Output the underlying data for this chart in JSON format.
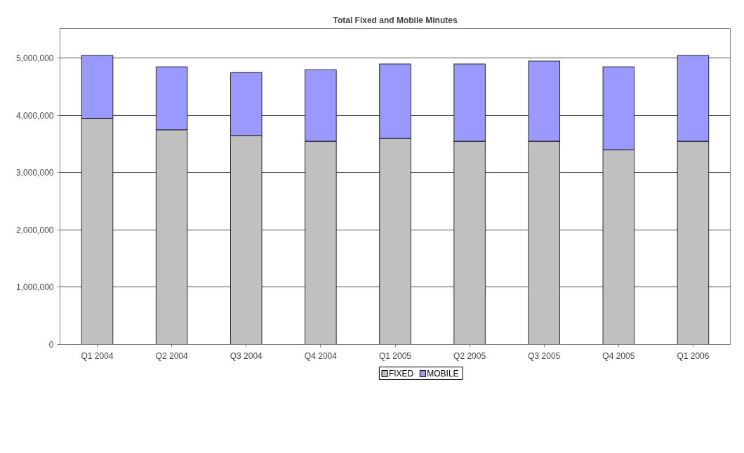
{
  "chart_data": {
    "type": "bar",
    "title": "Total Fixed and Mobile Minutes",
    "categories": [
      "Q1 2004",
      "Q2 2004",
      "Q3 2004",
      "Q4 2004",
      "Q1 2005",
      "Q2 2005",
      "Q3 2005",
      "Q4 2005",
      "Q1 2006"
    ],
    "series": [
      {
        "name": "FIXED",
        "color": "#c0c0c0",
        "values": [
          3950000,
          3750000,
          3650000,
          3550000,
          3600000,
          3550000,
          3550000,
          3400000,
          3550000
        ]
      },
      {
        "name": "MOBILE",
        "color": "#9999ff",
        "values": [
          1100000,
          1100000,
          1100000,
          1250000,
          1300000,
          1350000,
          1400000,
          1450000,
          1500000
        ]
      }
    ],
    "stacked": true,
    "ylim": [
      0,
      5520000
    ],
    "yticks": [
      0,
      {
        "value": 1000000,
        "label": "1,000,000"
      },
      {
        "value": 2000000,
        "label": "2,000,000"
      },
      {
        "value": 3000000,
        "label": "3,000,000"
      },
      {
        "value": 4000000,
        "label": "4,000,000"
      },
      {
        "value": 5000000,
        "label": "5,000,000"
      }
    ],
    "grid": "y",
    "legend": "bottom"
  }
}
